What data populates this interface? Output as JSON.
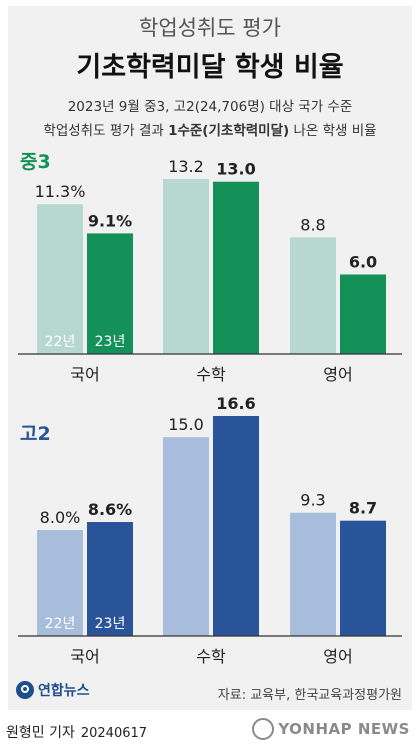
{
  "header": {
    "subtitle": "학업성취도 평가",
    "title": "기초학력미달 학생 비율",
    "desc_line1": "2023년 9월 중3, 고2(24,706명) 대상 국가 수준",
    "desc_line2_pre": "학업성취도 평가 결과 ",
    "desc_line2_bold": "1수준(기초학력미달)",
    "desc_line2_post": " 나온 학생 비율"
  },
  "chart_data": [
    {
      "type": "bar",
      "group_label": "중3",
      "categories": [
        "국어",
        "수학",
        "영어"
      ],
      "series": [
        {
          "name": "22년",
          "values": [
            11.3,
            13.2,
            8.8
          ],
          "labels": [
            "11.3%",
            "13.2",
            "8.8"
          ],
          "color": "#b6d8ce"
        },
        {
          "name": "23년",
          "values": [
            9.1,
            13.0,
            6.0
          ],
          "labels": [
            "9.1%",
            "13.0",
            "6.0"
          ],
          "color": "#139158"
        }
      ],
      "ylim": [
        0,
        16.6
      ],
      "legend": "inside-first-bars"
    },
    {
      "type": "bar",
      "group_label": "고2",
      "categories": [
        "국어",
        "수학",
        "영어"
      ],
      "series": [
        {
          "name": "22년",
          "values": [
            8.0,
            15.0,
            9.3
          ],
          "labels": [
            "8.0%",
            "15.0",
            "9.3"
          ],
          "color": "#a8bcdb"
        },
        {
          "name": "23년",
          "values": [
            8.6,
            16.6,
            8.7
          ],
          "labels": [
            "8.6%",
            "16.6",
            "8.7"
          ],
          "color": "#2a5499"
        }
      ],
      "ylim": [
        0,
        16.6
      ],
      "legend": "inside-first-bars"
    }
  ],
  "colors": {
    "label_mid3": "#139158",
    "label_high2": "#2a5499"
  },
  "footer": {
    "logo_text": "연합뉴스",
    "source": "자료: 교육부, 한국교육과정평가원",
    "reporter": "원형민 기자",
    "date": "20240617",
    "watermark": "YONHAP NEWS"
  }
}
